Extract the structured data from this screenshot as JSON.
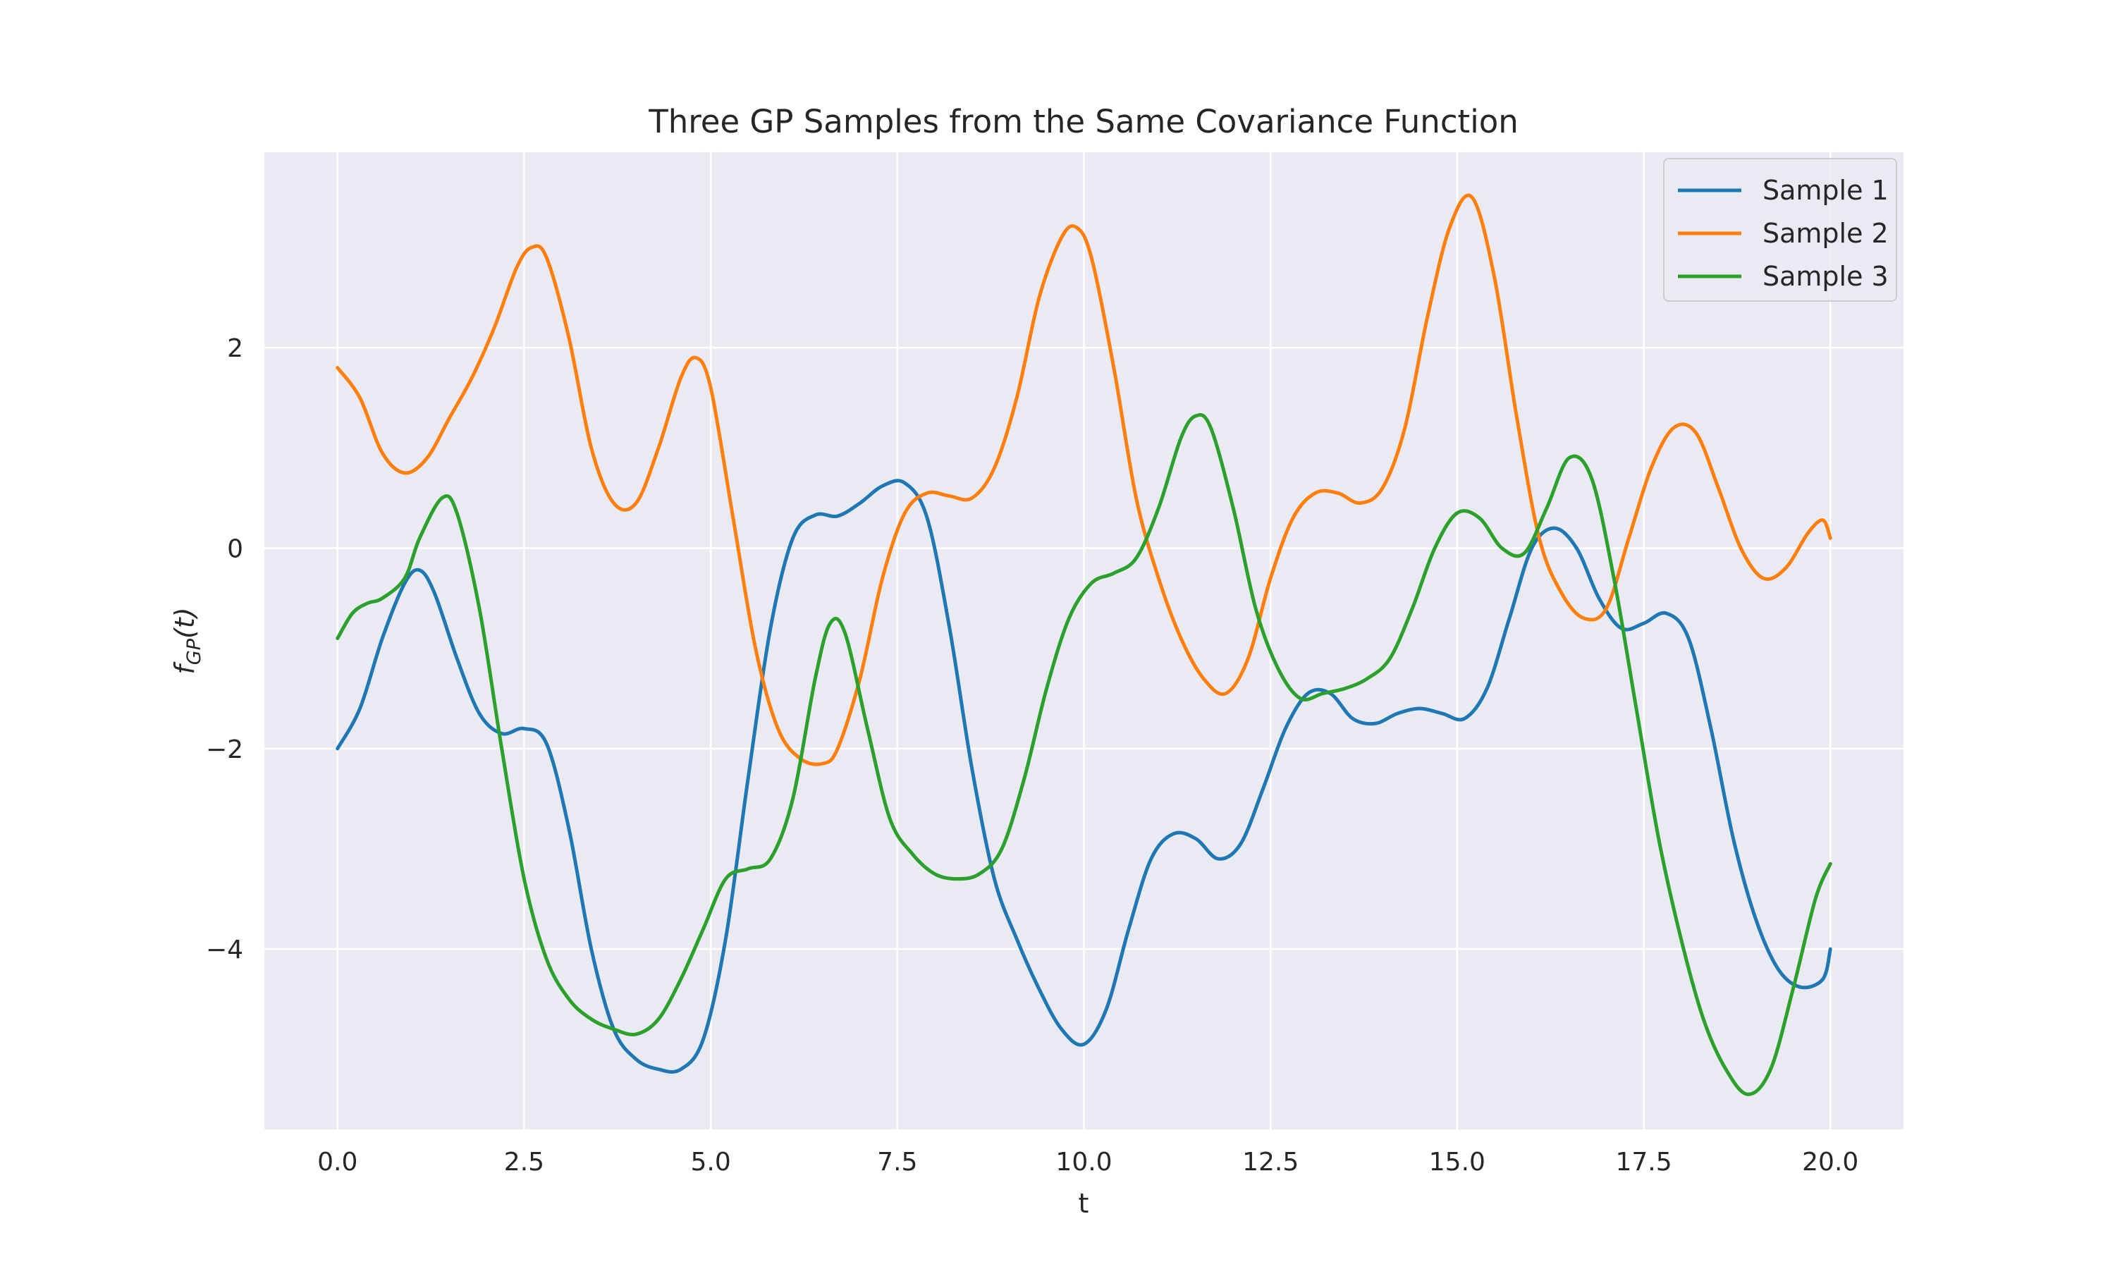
{
  "chart_data": {
    "type": "line",
    "title": "Three GP Samples from the Same Covariance Function",
    "xlabel": "t",
    "ylabel_parts": {
      "base": "f",
      "subscript": "GP",
      "arg": "(t)"
    },
    "xlim": [
      -0.98,
      20.98
    ],
    "ylim": [
      -5.8,
      3.95
    ],
    "xticks": [
      0,
      2.5,
      5,
      7.5,
      10,
      12.5,
      15,
      17.5,
      20
    ],
    "xtick_labels": [
      "0.0",
      "2.5",
      "5.0",
      "7.5",
      "10.0",
      "12.5",
      "15.0",
      "17.5",
      "20.0"
    ],
    "yticks": [
      -4,
      -2,
      0,
      2
    ],
    "ytick_labels": [
      "−4",
      "−2",
      "0",
      "2"
    ],
    "grid": true,
    "legend_position": "top-right",
    "background_color": "#EAEAF2",
    "series": [
      {
        "name": "Sample 1",
        "color": "#1F77B4",
        "x": [
          0,
          0.3,
          0.6,
          0.9,
          1.1,
          1.3,
          1.6,
          1.9,
          2.2,
          2.5,
          2.8,
          3.1,
          3.4,
          3.7,
          4.0,
          4.3,
          4.6,
          4.9,
          5.2,
          5.5,
          5.8,
          6.1,
          6.4,
          6.7,
          7.0,
          7.3,
          7.6,
          7.9,
          8.2,
          8.5,
          8.8,
          9.1,
          9.4,
          9.7,
          10.0,
          10.3,
          10.6,
          10.9,
          11.2,
          11.5,
          11.8,
          12.1,
          12.4,
          12.7,
          13.0,
          13.3,
          13.6,
          13.9,
          14.2,
          14.5,
          14.8,
          15.1,
          15.4,
          15.7,
          16.0,
          16.3,
          16.6,
          16.9,
          17.2,
          17.5,
          17.8,
          18.1,
          18.4,
          18.7,
          19.0,
          19.3,
          19.6,
          19.9,
          20.0
        ],
        "y": [
          -2.0,
          -1.6,
          -0.9,
          -0.35,
          -0.22,
          -0.45,
          -1.1,
          -1.65,
          -1.85,
          -1.8,
          -1.95,
          -2.8,
          -4.0,
          -4.8,
          -5.1,
          -5.2,
          -5.2,
          -4.9,
          -3.9,
          -2.3,
          -0.8,
          0.1,
          0.33,
          0.32,
          0.45,
          0.62,
          0.65,
          0.3,
          -0.8,
          -2.2,
          -3.3,
          -3.9,
          -4.4,
          -4.8,
          -4.95,
          -4.6,
          -3.8,
          -3.1,
          -2.85,
          -2.9,
          -3.1,
          -2.95,
          -2.4,
          -1.8,
          -1.45,
          -1.45,
          -1.7,
          -1.75,
          -1.65,
          -1.6,
          -1.65,
          -1.7,
          -1.4,
          -0.7,
          0.0,
          0.2,
          0.0,
          -0.5,
          -0.8,
          -0.75,
          -0.65,
          -0.9,
          -1.8,
          -2.9,
          -3.7,
          -4.2,
          -4.38,
          -4.3,
          -4.0
        ]
      },
      {
        "name": "Sample 2",
        "color": "#FF7F0E",
        "x": [
          0,
          0.3,
          0.6,
          0.9,
          1.2,
          1.5,
          1.8,
          2.1,
          2.4,
          2.6,
          2.8,
          3.1,
          3.4,
          3.7,
          4.0,
          4.3,
          4.6,
          4.8,
          5.0,
          5.3,
          5.6,
          5.9,
          6.2,
          6.5,
          6.7,
          7.0,
          7.3,
          7.6,
          7.9,
          8.2,
          8.5,
          8.8,
          9.1,
          9.4,
          9.7,
          9.9,
          10.1,
          10.4,
          10.7,
          11.0,
          11.3,
          11.6,
          11.9,
          12.2,
          12.5,
          12.8,
          13.1,
          13.4,
          13.7,
          14.0,
          14.3,
          14.6,
          14.9,
          15.2,
          15.5,
          15.8,
          16.1,
          16.4,
          16.7,
          17.0,
          17.3,
          17.6,
          17.9,
          18.2,
          18.5,
          18.8,
          19.1,
          19.4,
          19.7,
          19.9,
          20.0
        ],
        "y": [
          1.8,
          1.5,
          0.95,
          0.75,
          0.9,
          1.3,
          1.7,
          2.2,
          2.8,
          3.0,
          2.9,
          2.1,
          1.0,
          0.45,
          0.45,
          1.0,
          1.7,
          1.9,
          1.6,
          0.3,
          -1.0,
          -1.8,
          -2.1,
          -2.15,
          -2.0,
          -1.3,
          -0.3,
          0.35,
          0.55,
          0.52,
          0.5,
          0.8,
          1.5,
          2.5,
          3.1,
          3.2,
          2.9,
          1.8,
          0.5,
          -0.3,
          -0.9,
          -1.3,
          -1.45,
          -1.1,
          -0.3,
          0.3,
          0.55,
          0.55,
          0.45,
          0.6,
          1.2,
          2.3,
          3.2,
          3.5,
          2.7,
          1.3,
          0.1,
          -0.45,
          -0.7,
          -0.6,
          0.1,
          0.8,
          1.2,
          1.15,
          0.6,
          0.0,
          -0.3,
          -0.2,
          0.15,
          0.28,
          0.1
        ]
      },
      {
        "name": "Sample 3",
        "color": "#2CA02C",
        "x": [
          0,
          0.2,
          0.4,
          0.6,
          0.9,
          1.1,
          1.4,
          1.6,
          1.9,
          2.2,
          2.5,
          2.8,
          3.1,
          3.4,
          3.7,
          4.0,
          4.3,
          4.6,
          4.9,
          5.2,
          5.5,
          5.8,
          6.1,
          6.4,
          6.6,
          6.8,
          7.1,
          7.4,
          7.7,
          8.0,
          8.3,
          8.6,
          8.9,
          9.2,
          9.5,
          9.8,
          10.1,
          10.4,
          10.7,
          11.0,
          11.3,
          11.5,
          11.7,
          12.0,
          12.3,
          12.6,
          12.9,
          13.2,
          13.5,
          13.8,
          14.1,
          14.4,
          14.7,
          15.0,
          15.3,
          15.6,
          15.9,
          16.2,
          16.5,
          16.8,
          17.1,
          17.4,
          17.7,
          18.0,
          18.3,
          18.6,
          18.9,
          19.2,
          19.5,
          19.8,
          20.0
        ],
        "y": [
          -0.9,
          -0.65,
          -0.55,
          -0.5,
          -0.3,
          0.1,
          0.5,
          0.35,
          -0.6,
          -2.0,
          -3.3,
          -4.1,
          -4.5,
          -4.7,
          -4.8,
          -4.85,
          -4.7,
          -4.3,
          -3.8,
          -3.3,
          -3.2,
          -3.1,
          -2.5,
          -1.3,
          -0.75,
          -0.85,
          -1.8,
          -2.7,
          -3.05,
          -3.25,
          -3.3,
          -3.25,
          -3.0,
          -2.3,
          -1.4,
          -0.7,
          -0.35,
          -0.25,
          -0.1,
          0.4,
          1.1,
          1.32,
          1.2,
          0.4,
          -0.6,
          -1.2,
          -1.5,
          -1.45,
          -1.4,
          -1.3,
          -1.1,
          -0.6,
          0.0,
          0.35,
          0.3,
          0.0,
          -0.05,
          0.4,
          0.9,
          0.7,
          -0.3,
          -1.6,
          -2.9,
          -3.9,
          -4.7,
          -5.2,
          -5.45,
          -5.2,
          -4.4,
          -3.5,
          -3.15
        ]
      }
    ]
  }
}
